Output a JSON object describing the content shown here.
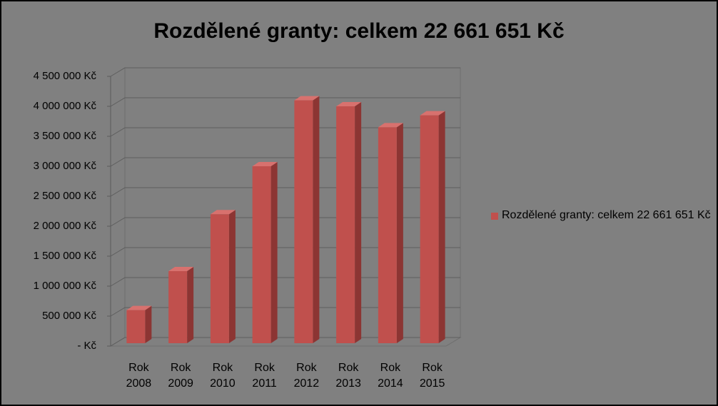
{
  "chart_data": {
    "type": "bar3d",
    "title": "Rozdělené granty: celkem 22 661 651 Kč",
    "categories": [
      "Rok 2008",
      "Rok 2009",
      "Rok 2010",
      "Rok 2011",
      "Rok 2012",
      "Rok 2013",
      "Rok 2014",
      "Rok 2015"
    ],
    "series": [
      {
        "name": "Rozdělené granty: celkem 22 661 651 Kč",
        "color": "#c0504d",
        "values": [
          600000,
          1250000,
          2200000,
          3000000,
          4100000,
          4000000,
          3650000,
          3850000
        ]
      }
    ],
    "ylim": [
      0,
      4500000
    ],
    "yticks": [
      {
        "value": 0,
        "label": "-   Kč"
      },
      {
        "value": 500000,
        "label": "500 000 Kč"
      },
      {
        "value": 1000000,
        "label": "1 000 000 Kč"
      },
      {
        "value": 1500000,
        "label": "1 500 000 Kč"
      },
      {
        "value": 2000000,
        "label": "2 000 000 Kč"
      },
      {
        "value": 2500000,
        "label": "2 500 000 Kč"
      },
      {
        "value": 3000000,
        "label": "3 000 000 Kč"
      },
      {
        "value": 3500000,
        "label": "3 500 000 Kč"
      },
      {
        "value": 4000000,
        "label": "4 000 000 Kč"
      },
      {
        "value": 4500000,
        "label": "4 500 000 Kč"
      }
    ],
    "grid": true,
    "legend": "right"
  }
}
